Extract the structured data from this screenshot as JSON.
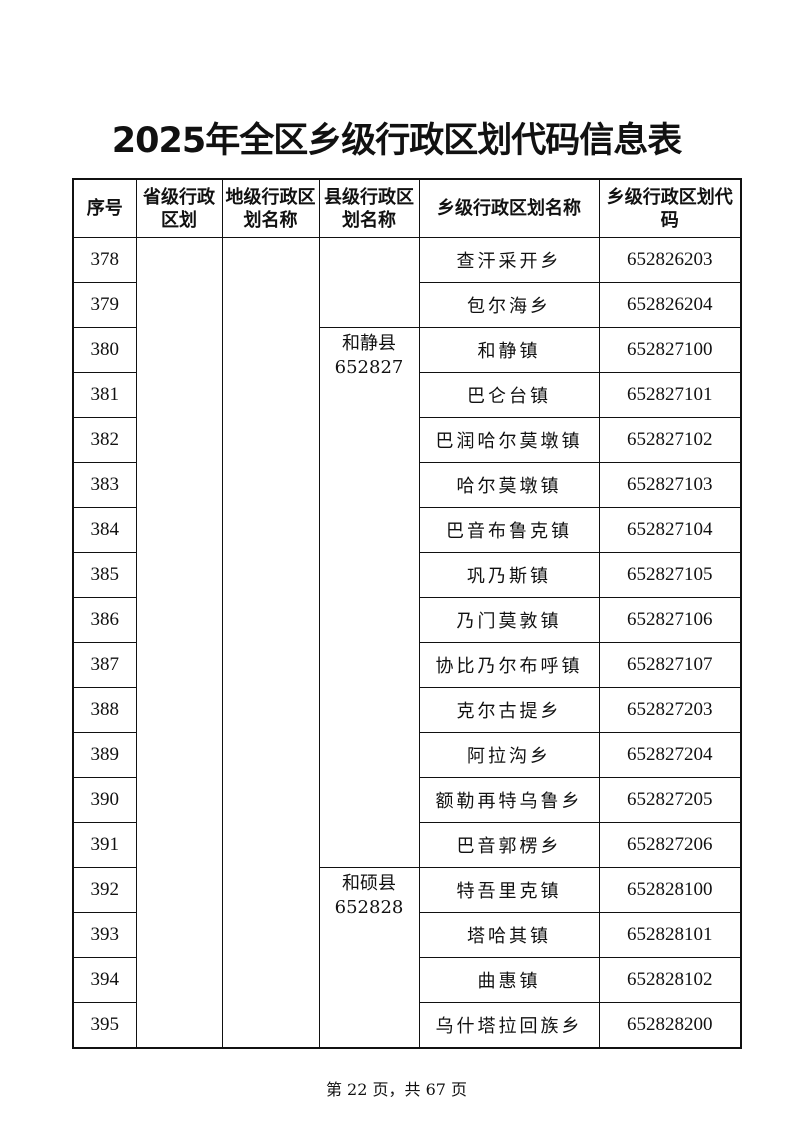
{
  "title": "2025年全区乡级行政区划代码信息表",
  "headers": [
    "序号",
    "省级行政区划",
    "地级行政区划名称",
    "县级行政区划名称",
    "乡级行政区划名称",
    "乡级行政区划代码"
  ],
  "counties": [
    {
      "name": "和静县",
      "code": "652827"
    },
    {
      "name": "和硕县",
      "code": "652828"
    }
  ],
  "rows": [
    {
      "seq": "378",
      "name": "查汗采开乡",
      "code": "652826203"
    },
    {
      "seq": "379",
      "name": "包尔海乡",
      "code": "652826204"
    },
    {
      "seq": "380",
      "name": "和静镇",
      "code": "652827100"
    },
    {
      "seq": "381",
      "name": "巴仑台镇",
      "code": "652827101"
    },
    {
      "seq": "382",
      "name": "巴润哈尔莫墩镇",
      "code": "652827102"
    },
    {
      "seq": "383",
      "name": "哈尔莫墩镇",
      "code": "652827103"
    },
    {
      "seq": "384",
      "name": "巴音布鲁克镇",
      "code": "652827104"
    },
    {
      "seq": "385",
      "name": "巩乃斯镇",
      "code": "652827105"
    },
    {
      "seq": "386",
      "name": "乃门莫敦镇",
      "code": "652827106"
    },
    {
      "seq": "387",
      "name": "协比乃尔布呼镇",
      "code": "652827107"
    },
    {
      "seq": "388",
      "name": "克尔古提乡",
      "code": "652827203"
    },
    {
      "seq": "389",
      "name": "阿拉沟乡",
      "code": "652827204"
    },
    {
      "seq": "390",
      "name": "额勒再特乌鲁乡",
      "code": "652827205"
    },
    {
      "seq": "391",
      "name": "巴音郭楞乡",
      "code": "652827206"
    },
    {
      "seq": "392",
      "name": "特吾里克镇",
      "code": "652828100"
    },
    {
      "seq": "393",
      "name": "塔哈其镇",
      "code": "652828101"
    },
    {
      "seq": "394",
      "name": "曲惠镇",
      "code": "652828102"
    },
    {
      "seq": "395",
      "name": "乌什塔拉回族乡",
      "code": "652828200"
    }
  ],
  "footer": "第 22 页，共 67 页"
}
